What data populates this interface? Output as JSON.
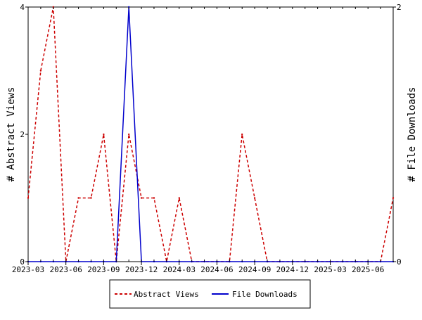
{
  "chart_data": {
    "type": "line",
    "x": [
      "2023-03",
      "2023-04",
      "2023-05",
      "2023-06",
      "2023-07",
      "2023-08",
      "2023-09",
      "2023-10",
      "2023-11",
      "2023-12",
      "2024-01",
      "2024-02",
      "2024-03",
      "2024-04",
      "2024-05",
      "2024-06",
      "2024-07",
      "2024-08",
      "2024-09",
      "2024-10",
      "2024-11",
      "2024-12",
      "2025-01",
      "2025-02",
      "2025-03",
      "2025-04",
      "2025-05",
      "2025-06",
      "2025-07",
      "2025-08"
    ],
    "x_tick_labels": [
      "2023-03",
      "2023-06",
      "2023-09",
      "2023-12",
      "2024-03",
      "2024-06",
      "2024-09",
      "2024-12",
      "2025-03",
      "2025-06"
    ],
    "series": [
      {
        "name": "Abstract Views",
        "axis": "left",
        "color": "#cc0000",
        "dash": "dashed",
        "values": [
          1,
          3,
          4,
          0,
          1,
          1,
          2,
          0,
          2,
          1,
          1,
          0,
          1,
          0,
          0,
          0,
          0,
          2,
          1,
          0,
          0,
          0,
          0,
          0,
          0,
          0,
          0,
          0,
          0,
          1
        ]
      },
      {
        "name": "File Downloads",
        "axis": "right",
        "color": "#0000cc",
        "dash": "solid",
        "values": [
          0,
          0,
          0,
          0,
          0,
          0,
          0,
          0,
          2,
          0,
          0,
          0,
          0,
          0,
          0,
          0,
          0,
          0,
          0,
          0,
          0,
          0,
          0,
          0,
          0,
          0,
          0,
          0,
          0,
          0
        ]
      }
    ],
    "y_left": {
      "label": "# Abstract Views",
      "ylim": [
        0,
        4
      ],
      "ticks": [
        "0",
        "2",
        "4"
      ]
    },
    "y_right": {
      "label": "# File Downloads",
      "ylim": [
        0,
        2
      ],
      "ticks": [
        "0",
        "2"
      ]
    },
    "grid": false,
    "legend": {
      "position": "bottom",
      "entries": [
        "Abstract Views",
        "File Downloads"
      ]
    }
  }
}
